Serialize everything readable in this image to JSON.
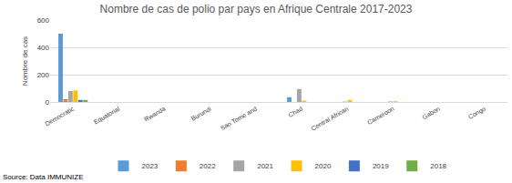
{
  "chart_data": {
    "type": "bar",
    "title": "Nombre de cas de polio par pays en Afrique Centrale 2017-2023",
    "y_label": "Nombre de cas",
    "source": "Source: Data IMMUNIZE",
    "categories": [
      "Democratic",
      "Equatorial",
      "Rwanda",
      "Burundi",
      "Sao Tome and",
      "Chad",
      "Central African",
      "Cameroon",
      "Gabon",
      "Congo"
    ],
    "series": [
      {
        "name": "2023",
        "color": "#5b9bd5",
        "values": [
          500,
          0,
          0,
          0,
          0,
          35,
          0,
          0,
          0,
          0
        ]
      },
      {
        "name": "2022",
        "color": "#ed7d31",
        "values": [
          20,
          0,
          0,
          0,
          0,
          0,
          0,
          0,
          0,
          0
        ]
      },
      {
        "name": "2021",
        "color": "#a5a5a5",
        "values": [
          80,
          0,
          0,
          0,
          0,
          95,
          3,
          4,
          0,
          0
        ]
      },
      {
        "name": "2020",
        "color": "#ffc000",
        "values": [
          85,
          0,
          0,
          0,
          0,
          10,
          15,
          5,
          0,
          0
        ]
      },
      {
        "name": "2019",
        "color": "#4472c4",
        "values": [
          15,
          0,
          0,
          0,
          0,
          0,
          0,
          0,
          0,
          0
        ]
      },
      {
        "name": "2018",
        "color": "#70ad47",
        "values": [
          15,
          0,
          0,
          0,
          0,
          0,
          0,
          0,
          0,
          0
        ]
      }
    ],
    "ylim": [
      0,
      600
    ],
    "yticks": [
      0,
      200,
      400,
      600
    ],
    "grid": true,
    "legend": "bottom"
  }
}
